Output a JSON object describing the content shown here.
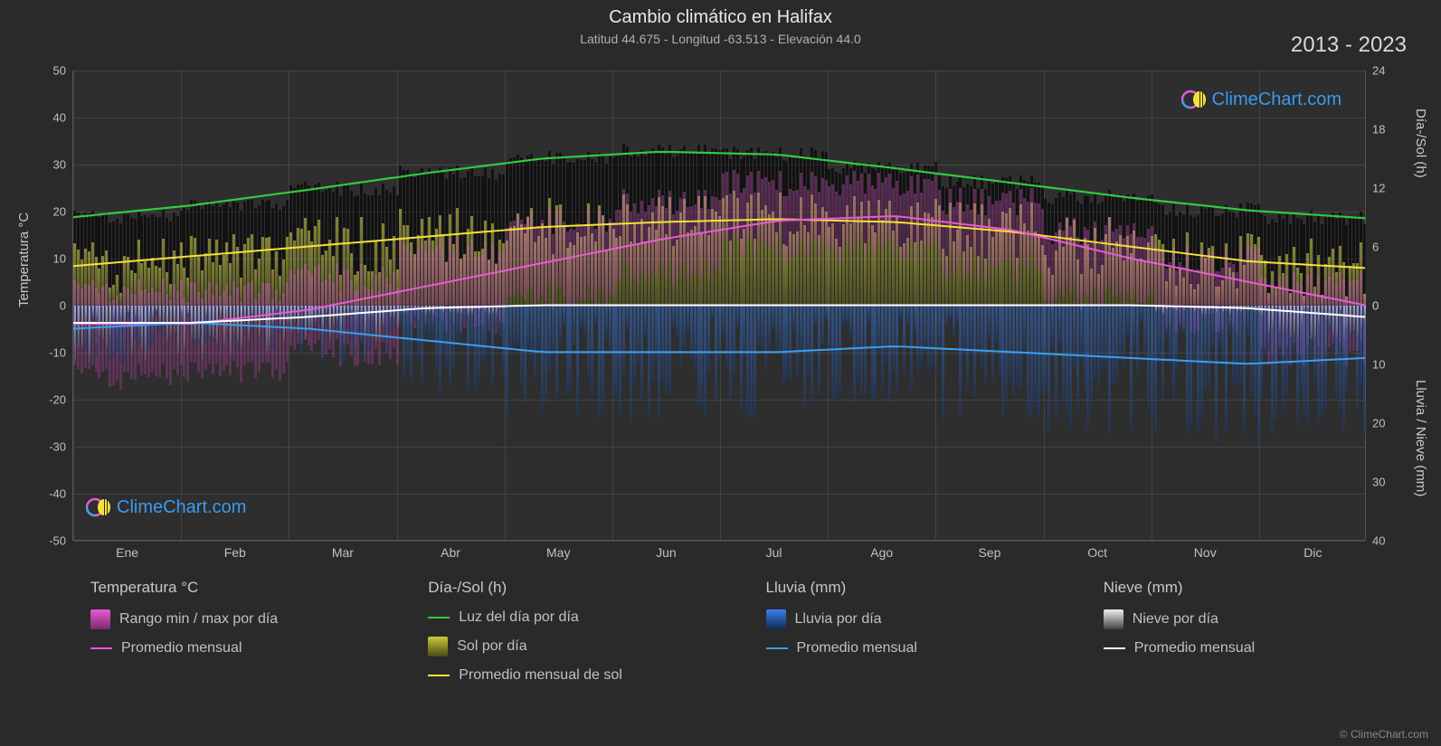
{
  "title": "Cambio climático en Halifax",
  "subtitle": "Latitud 44.675 - Longitud -63.513 - Elevación 44.0",
  "year_range": "2013 - 2023",
  "brand": "ClimeChart.com",
  "copyright": "© ClimeChart.com",
  "chart": {
    "type": "climate-overlay",
    "background_color": "#2e2e2e",
    "grid_color": "#444444",
    "text_color": "#c8c8c8",
    "y_left": {
      "label": "Temperatura °C",
      "min": -50,
      "max": 50,
      "step": 10,
      "ticks": [
        -50,
        -40,
        -30,
        -20,
        -10,
        0,
        10,
        20,
        30,
        40,
        50
      ]
    },
    "y_right_top": {
      "label": "Día-/Sol (h)",
      "min": 0,
      "max": 24,
      "step": 6,
      "ticks": [
        0,
        6,
        12,
        18,
        24
      ]
    },
    "y_right_bottom": {
      "label": "Lluvia / Nieve (mm)",
      "min": 0,
      "max": 40,
      "step": 10,
      "ticks": [
        0,
        10,
        20,
        30,
        40
      ]
    },
    "x": {
      "months": [
        "Ene",
        "Feb",
        "Mar",
        "Abr",
        "May",
        "Jun",
        "Jul",
        "Ago",
        "Sep",
        "Oct",
        "Nov",
        "Dic"
      ]
    },
    "series": {
      "daylight": {
        "color": "#2ecc40",
        "values_h": [
          9.0,
          10.2,
          11.8,
          13.5,
          15.0,
          15.7,
          15.4,
          14.0,
          12.5,
          11.0,
          9.7,
          8.9
        ]
      },
      "sun_avg": {
        "color": "#f6e13a",
        "values_h": [
          4.0,
          5.0,
          6.0,
          7.0,
          8.0,
          8.5,
          8.8,
          8.5,
          7.5,
          6.0,
          4.5,
          3.8
        ]
      },
      "temp_avg": {
        "color": "#e85ad6",
        "values_c": [
          -4,
          -4,
          -1,
          4,
          9,
          14,
          18,
          19,
          16,
          10,
          5,
          0
        ]
      },
      "temp_range": {
        "color": "#e85ad6",
        "min_c": [
          -15,
          -14,
          -10,
          -3,
          2,
          7,
          12,
          12,
          8,
          2,
          -3,
          -10
        ],
        "max_c": [
          3,
          3,
          6,
          12,
          18,
          22,
          26,
          26,
          22,
          16,
          10,
          5
        ]
      },
      "rain_avg": {
        "color": "#3aa0f0",
        "values_mm": [
          4,
          3,
          4,
          6,
          8,
          8,
          8,
          7,
          8,
          9,
          10,
          9
        ]
      },
      "snow_avg": {
        "color": "#ffffff",
        "values_mm": [
          3,
          3,
          2,
          0.5,
          0,
          0,
          0,
          0,
          0,
          0,
          0.5,
          2
        ]
      }
    },
    "colors": {
      "temp_gradient_from": "#e85ad6",
      "temp_gradient_to": "#b03aa0",
      "sun_gradient_from": "#c9c93a",
      "sun_gradient_to": "#6a6a1a",
      "rain_gradient_from": "#3a7ff0",
      "rain_gradient_to": "#1a3a70",
      "snow_gradient_from": "#f0f0f0",
      "snow_gradient_to": "#606060"
    }
  },
  "legend": {
    "temperature": {
      "header": "Temperatura °C",
      "items": [
        {
          "type": "gradient",
          "from": "#e85ad6",
          "to": "#7a2a70",
          "label": "Rango min / max por día"
        },
        {
          "type": "line",
          "color": "#e85ad6",
          "label": "Promedio mensual"
        }
      ]
    },
    "daysun": {
      "header": "Día-/Sol (h)",
      "items": [
        {
          "type": "line",
          "color": "#2ecc40",
          "label": "Luz del día por día"
        },
        {
          "type": "gradient",
          "from": "#c9c93a",
          "to": "#4a4a1a",
          "label": "Sol por día"
        },
        {
          "type": "line",
          "color": "#f6e13a",
          "label": "Promedio mensual de sol"
        }
      ]
    },
    "rain": {
      "header": "Lluvia (mm)",
      "items": [
        {
          "type": "gradient",
          "from": "#3a7ff0",
          "to": "#122a50",
          "label": "Lluvia por día"
        },
        {
          "type": "line",
          "color": "#3aa0f0",
          "label": "Promedio mensual"
        }
      ]
    },
    "snow": {
      "header": "Nieve (mm)",
      "items": [
        {
          "type": "gradient",
          "from": "#f0f0f0",
          "to": "#404040",
          "label": "Nieve por día"
        },
        {
          "type": "line",
          "color": "#ffffff",
          "label": "Promedio mensual"
        }
      ]
    }
  }
}
